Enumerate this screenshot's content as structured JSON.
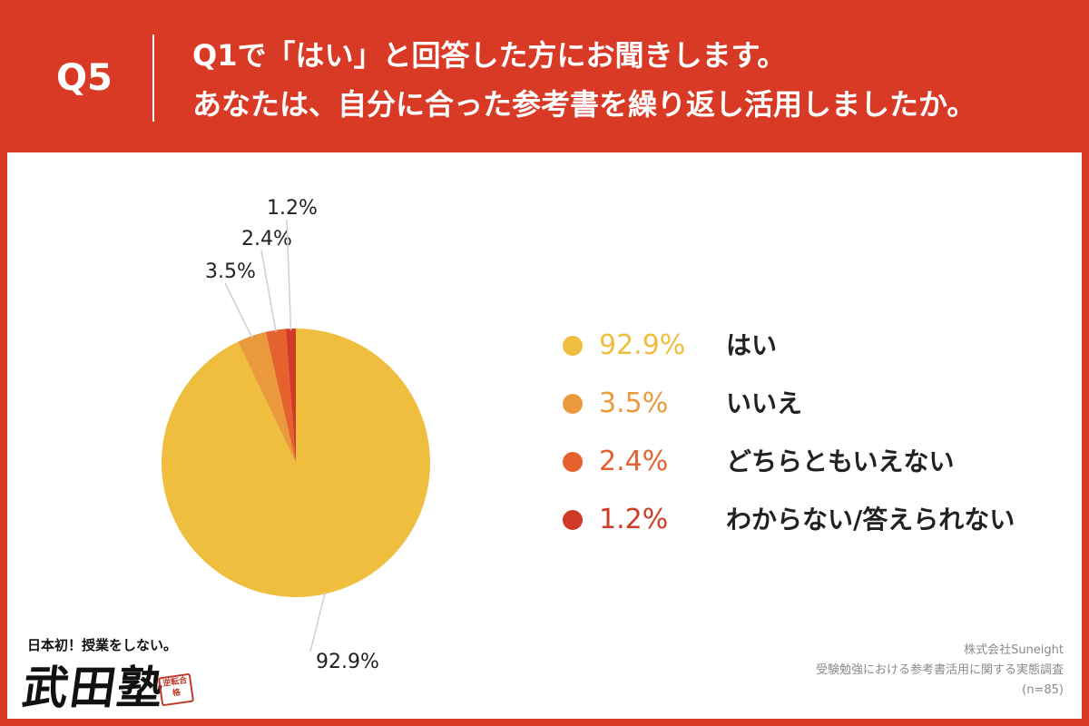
{
  "header": {
    "question_number": "Q5",
    "title_line1": "Q1で「はい」と回答した方にお聞きします。",
    "title_line2": "あなたは、自分に合った参考書を繰り返し活用しましたか。"
  },
  "chart_data": {
    "type": "pie",
    "title": "",
    "start_angle_deg": 0,
    "direction": "counterclockwise",
    "slices": [
      {
        "label": "はい",
        "value": 92.9,
        "display": "92.9%",
        "color": "#efbe3f"
      },
      {
        "label": "いいえ",
        "value": 3.5,
        "display": "3.5%",
        "color": "#ea9a3c"
      },
      {
        "label": "どちらともいえない",
        "value": 2.4,
        "display": "2.4%",
        "color": "#e5622e"
      },
      {
        "label": "わからない/答えられない",
        "value": 1.2,
        "display": "1.2%",
        "color": "#cf3b27"
      }
    ],
    "legend_position": "right"
  },
  "colors": {
    "header_bg": "#d93a26",
    "panel_bg": "#ffffff"
  },
  "logo": {
    "tagline": "日本初！授業をしない。",
    "name": "武田塾",
    "seal_text": "逆転合格"
  },
  "source": {
    "company": "株式会社Suneight",
    "survey": "受験勉強における参考書活用に関する実態調査",
    "sample": "(n=85)"
  }
}
